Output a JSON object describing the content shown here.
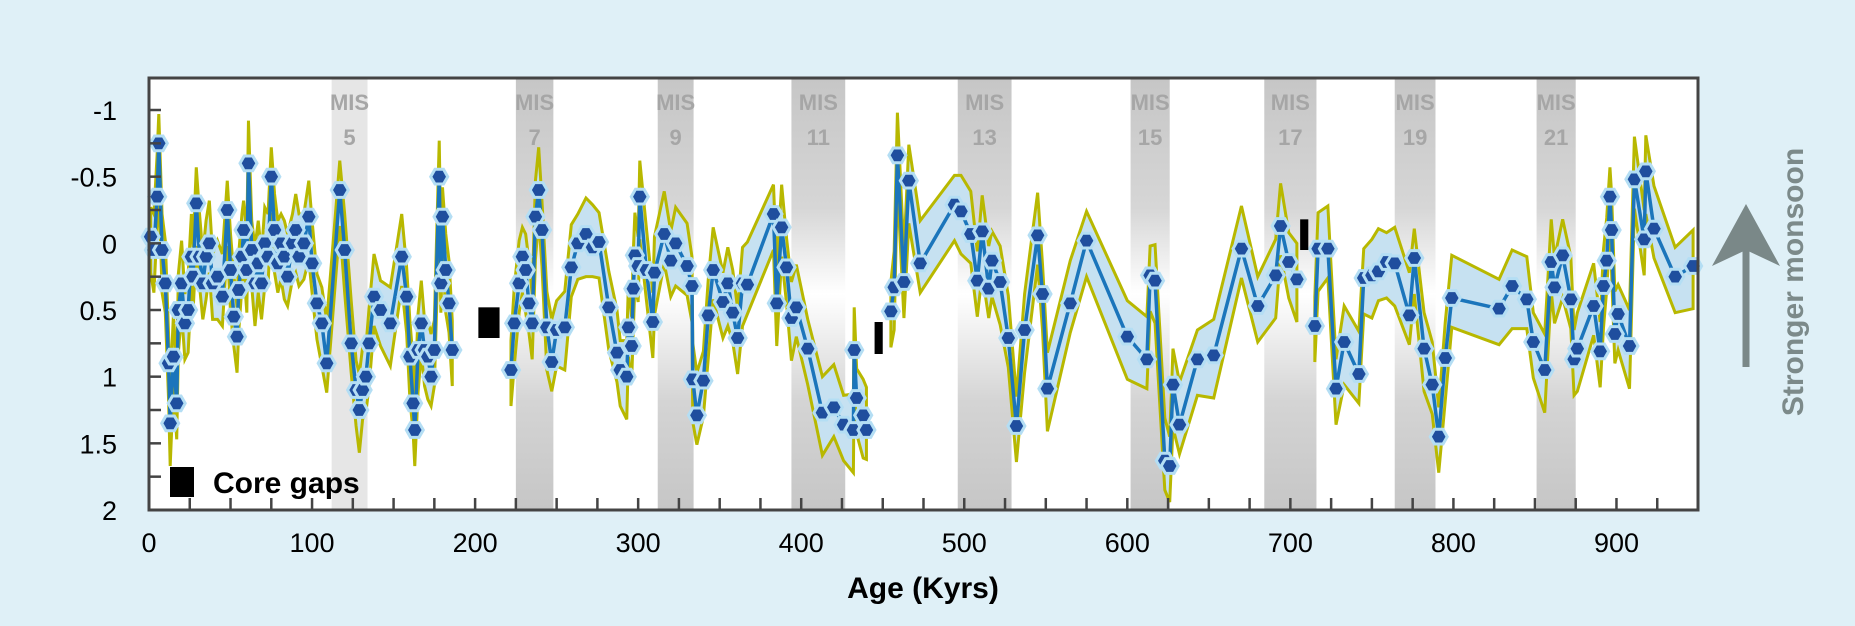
{
  "chart_data": {
    "type": "line",
    "title": "",
    "xlabel": "Age (Kyrs)",
    "ylabel": "",
    "side_label": "Stronger monsoon",
    "xlim": [
      0,
      950
    ],
    "ylim": [
      -1.24,
      2
    ],
    "y_reversed": true,
    "xticks": [
      0,
      100,
      200,
      300,
      400,
      500,
      600,
      700,
      800,
      900
    ],
    "yticks": [
      -1,
      -0.5,
      0,
      0.5,
      1,
      1.5,
      2
    ],
    "ytick_labels": [
      "-1",
      "-0.5",
      "0",
      "0.5",
      "1",
      "1.5",
      "2"
    ],
    "legend": {
      "label": "Core gaps",
      "placement": "bottom-left"
    },
    "uncertainty_halfwidth": 0.22,
    "colors": {
      "line": "#1b75bb",
      "band_fill": "#c6e1f1",
      "band_edge": "#b8b800",
      "marker_fill": "#1f4e9e",
      "marker_edge": "#b4def4",
      "mis": "#c8c8c8",
      "gap": "#000000",
      "background": "#dff0f7"
    },
    "mis_bands": [
      {
        "label": "MIS",
        "num": "5",
        "range": [
          112,
          134
        ]
      },
      {
        "label": "MIS",
        "num": "7",
        "range": [
          225,
          248
        ]
      },
      {
        "label": "MIS",
        "num": "9",
        "range": [
          312,
          334
        ]
      },
      {
        "label": "MIS",
        "num": "11",
        "range": [
          394,
          427
        ]
      },
      {
        "label": "MIS",
        "num": "13",
        "range": [
          496,
          529
        ]
      },
      {
        "label": "MIS",
        "num": "15",
        "range": [
          602,
          626
        ]
      },
      {
        "label": "MIS",
        "num": "17",
        "range": [
          684,
          716
        ]
      },
      {
        "label": "MIS",
        "num": "19",
        "range": [
          764,
          789
        ]
      },
      {
        "label": "MIS",
        "num": "21",
        "range": [
          851,
          875
        ]
      }
    ],
    "core_gaps": [
      {
        "age": [
          202,
          215
        ],
        "value": [
          0.48,
          0.71
        ]
      },
      {
        "age": [
          445,
          450
        ],
        "value": [
          0.59,
          0.83
        ]
      },
      {
        "age": [
          706,
          711
        ],
        "value": [
          -0.18,
          0.05
        ]
      }
    ],
    "segments": [
      [
        [
          1,
          -0.05
        ],
        [
          3,
          0.05
        ],
        [
          5,
          -0.35
        ],
        [
          6,
          -0.75
        ],
        [
          8,
          0.05
        ],
        [
          10,
          0.3
        ],
        [
          12,
          0.9
        ],
        [
          13,
          1.35
        ],
        [
          15,
          0.85
        ],
        [
          17,
          1.2
        ],
        [
          18,
          0.5
        ],
        [
          20,
          0.3
        ],
        [
          22,
          0.6
        ],
        [
          24,
          0.5
        ],
        [
          26,
          0.1
        ],
        [
          27,
          0.25
        ],
        [
          29,
          -0.3
        ],
        [
          31,
          0.1
        ],
        [
          33,
          0.3
        ],
        [
          35,
          0.1
        ],
        [
          37,
          0.0
        ],
        [
          39,
          0.3
        ],
        [
          42,
          0.25
        ],
        [
          45,
          0.4
        ],
        [
          48,
          -0.25
        ],
        [
          50,
          0.2
        ],
        [
          52,
          0.55
        ],
        [
          54,
          0.7
        ],
        [
          55,
          0.35
        ],
        [
          57,
          0.1
        ],
        [
          58,
          -0.1
        ],
        [
          60,
          0.2
        ],
        [
          61,
          -0.6
        ],
        [
          63,
          0.05
        ],
        [
          65,
          0.3
        ],
        [
          67,
          0.15
        ],
        [
          69,
          0.3
        ],
        [
          71,
          0.0
        ],
        [
          73,
          0.1
        ],
        [
          75,
          -0.5
        ],
        [
          77,
          -0.1
        ],
        [
          79,
          0.15
        ],
        [
          81,
          0.0
        ],
        [
          83,
          0.1
        ],
        [
          85,
          0.25
        ],
        [
          88,
          0.0
        ],
        [
          90,
          -0.1
        ],
        [
          92,
          0.1
        ],
        [
          95,
          0.0
        ],
        [
          98,
          -0.2
        ],
        [
          100,
          0.15
        ],
        [
          103,
          0.45
        ],
        [
          106,
          0.6
        ],
        [
          109,
          0.9
        ],
        [
          117,
          -0.4
        ],
        [
          120,
          0.05
        ],
        [
          124,
          0.75
        ],
        [
          127,
          1.1
        ],
        [
          129,
          1.25
        ],
        [
          131,
          1.1
        ],
        [
          133,
          1.0
        ],
        [
          135,
          0.75
        ],
        [
          138,
          0.4
        ],
        [
          142,
          0.5
        ],
        [
          148,
          0.6
        ],
        [
          155,
          0.1
        ],
        [
          158,
          0.4
        ],
        [
          160,
          0.85
        ],
        [
          162,
          1.2
        ],
        [
          163,
          1.4
        ],
        [
          165,
          0.8
        ],
        [
          167,
          0.6
        ],
        [
          169,
          0.8
        ],
        [
          171,
          0.85
        ],
        [
          173,
          1.0
        ],
        [
          175,
          0.8
        ],
        [
          178,
          -0.5
        ],
        [
          179,
          0.3
        ],
        [
          180,
          -0.2
        ],
        [
          182,
          0.2
        ],
        [
          184,
          0.45
        ],
        [
          186,
          0.8
        ]
      ],
      [
        [
          222,
          0.95
        ],
        [
          224,
          0.6
        ],
        [
          227,
          0.3
        ],
        [
          229,
          0.1
        ],
        [
          231,
          0.2
        ],
        [
          233,
          0.45
        ],
        [
          235,
          0.6
        ],
        [
          237,
          -0.2
        ],
        [
          239,
          -0.4
        ],
        [
          241,
          -0.1
        ],
        [
          244,
          0.63
        ],
        [
          247,
          0.89
        ],
        [
          250,
          0.65
        ],
        [
          255,
          0.63
        ],
        [
          259,
          0.18
        ],
        [
          263,
          0.0
        ],
        [
          268,
          -0.07
        ],
        [
          272,
          0.03
        ],
        [
          276,
          -0.01
        ],
        [
          282,
          0.48
        ],
        [
          287,
          0.82
        ],
        [
          289,
          0.95
        ],
        [
          293,
          1.0
        ],
        [
          294,
          0.63
        ],
        [
          296,
          0.77
        ],
        [
          297,
          0.34
        ],
        [
          298,
          0.09
        ],
        [
          300,
          0.17
        ],
        [
          301,
          -0.35
        ],
        [
          305,
          0.2
        ],
        [
          309,
          0.59
        ],
        [
          310,
          0.22
        ],
        [
          316,
          -0.07
        ],
        [
          320,
          0.13
        ],
        [
          323,
          0.0
        ],
        [
          330,
          0.17
        ],
        [
          333,
          0.32
        ],
        [
          333.5,
          1.02
        ],
        [
          336,
          1.29
        ],
        [
          340,
          1.03
        ],
        [
          343,
          0.54
        ],
        [
          346,
          0.2
        ],
        [
          352,
          0.44
        ],
        [
          355,
          0.3
        ],
        [
          358,
          0.52
        ],
        [
          361,
          0.71
        ],
        [
          364,
          0.3
        ],
        [
          367,
          0.31
        ],
        [
          383,
          -0.22
        ],
        [
          385,
          0.45
        ],
        [
          388,
          -0.12
        ],
        [
          391,
          0.18
        ],
        [
          394,
          0.56
        ],
        [
          397,
          0.48
        ],
        [
          404,
          0.79
        ],
        [
          413,
          1.27
        ],
        [
          420,
          1.23
        ],
        [
          426,
          1.36
        ],
        [
          432,
          1.4
        ],
        [
          432.5,
          0.8
        ],
        [
          434,
          1.16
        ],
        [
          438,
          1.29
        ],
        [
          440,
          1.4
        ]
      ],
      [
        [
          455,
          0.51
        ],
        [
          457,
          0.33
        ],
        [
          459,
          -0.66
        ],
        [
          463,
          0.29
        ],
        [
          466,
          -0.47
        ],
        [
          473,
          0.15
        ],
        [
          494,
          -0.29
        ],
        [
          498,
          -0.24
        ],
        [
          504,
          -0.07
        ],
        [
          508,
          0.28
        ],
        [
          511,
          -0.09
        ],
        [
          515,
          0.34
        ],
        [
          517,
          0.13
        ],
        [
          522,
          0.29
        ],
        [
          527,
          0.71
        ],
        [
          532,
          1.37
        ],
        [
          537,
          0.65
        ],
        [
          545,
          -0.06
        ],
        [
          548,
          0.38
        ],
        [
          551,
          1.09
        ],
        [
          565,
          0.45
        ],
        [
          575,
          -0.02
        ],
        [
          600,
          0.7
        ],
        [
          612,
          0.87
        ],
        [
          614,
          0.24
        ],
        [
          617,
          0.28
        ],
        [
          623,
          1.63
        ],
        [
          626,
          1.67
        ],
        [
          628,
          1.06
        ],
        [
          632,
          1.36
        ],
        [
          643,
          0.87
        ],
        [
          653,
          0.84
        ],
        [
          670,
          0.04
        ],
        [
          680,
          0.47
        ],
        [
          691,
          0.24
        ],
        [
          694,
          -0.13
        ],
        [
          699,
          0.14
        ],
        [
          704,
          0.27
        ]
      ],
      [
        [
          715,
          0.62
        ],
        [
          717,
          0.04
        ],
        [
          723,
          0.04
        ],
        [
          728,
          1.09
        ],
        [
          733,
          0.74
        ],
        [
          742,
          0.98
        ],
        [
          745,
          0.26
        ],
        [
          750,
          0.24
        ],
        [
          754,
          0.21
        ],
        [
          759,
          0.14
        ],
        [
          764,
          0.15
        ],
        [
          773,
          0.54
        ],
        [
          776,
          0.11
        ],
        [
          782,
          0.79
        ],
        [
          787,
          1.06
        ],
        [
          791,
          1.45
        ],
        [
          795,
          0.86
        ],
        [
          799,
          0.41
        ],
        [
          828,
          0.49
        ],
        [
          836,
          0.32
        ],
        [
          845,
          0.42
        ],
        [
          849,
          0.74
        ],
        [
          856,
          0.95
        ],
        [
          860,
          0.14
        ],
        [
          862,
          0.33
        ],
        [
          867,
          0.09
        ],
        [
          872,
          0.42
        ],
        [
          874,
          0.87
        ],
        [
          876,
          0.79
        ],
        [
          886,
          0.47
        ],
        [
          890,
          0.81
        ],
        [
          892,
          0.32
        ],
        [
          894,
          0.13
        ],
        [
          896,
          -0.35
        ],
        [
          897,
          -0.1
        ],
        [
          899,
          0.68
        ],
        [
          901,
          0.53
        ],
        [
          908,
          0.77
        ],
        [
          911,
          -0.48
        ],
        [
          917,
          -0.03
        ],
        [
          918,
          -0.54
        ],
        [
          923,
          -0.11
        ],
        [
          936,
          0.25
        ],
        [
          947,
          0.17
        ]
      ]
    ]
  }
}
